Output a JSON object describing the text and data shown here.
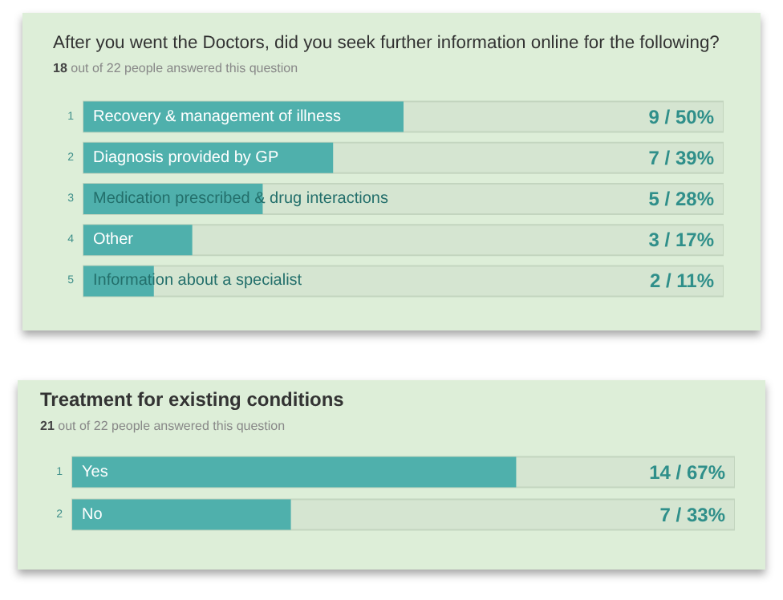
{
  "chart_data": [
    {
      "type": "bar",
      "orientation": "horizontal",
      "title": "After you went the Doctors, did you seek further information online for the following?",
      "subtitle": "18 out of 22 people answered this question",
      "categories": [
        "Recovery & management of illness",
        "Diagnosis provided by GP",
        "Medication prescribed & drug interactions",
        "Other",
        "Information about a specialist"
      ],
      "values": [
        50,
        39,
        28,
        17,
        11
      ],
      "value_labels": [
        "9 / 50%",
        "7 / 39%",
        "5 / 28%",
        "3 / 17%",
        "2 / 11%"
      ],
      "color": "#4fb0ac",
      "xlim": [
        0,
        100
      ],
      "tick_labels": false,
      "annotations": [
        "1",
        "2",
        "3",
        "4",
        "5"
      ]
    },
    {
      "type": "bar",
      "orientation": "horizontal",
      "title": "Treatment for existing conditions",
      "subtitle": "21 out of 22 people answered this question",
      "categories": [
        "Yes",
        "No"
      ],
      "values": [
        67,
        33
      ],
      "value_labels": [
        "14 / 67%",
        "7 / 33%"
      ],
      "color": "#4fb0ac",
      "xlim": [
        0,
        100
      ],
      "tick_labels": false,
      "annotations": [
        "1",
        "2"
      ]
    }
  ]
}
